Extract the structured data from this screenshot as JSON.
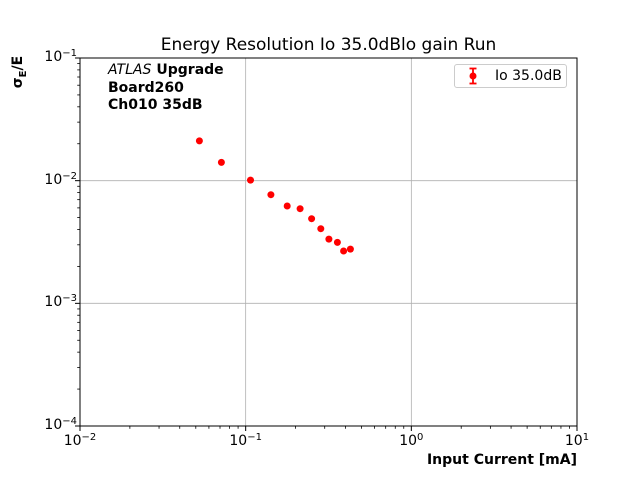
{
  "figure": {
    "background": "#ffffff"
  },
  "annotation": {
    "line1_italic": "ATLAS",
    "line1_bold": "Upgrade",
    "line2": "Board260",
    "line3": "Ch010 35dB"
  },
  "legend": {
    "label": "Io 35.0dB"
  },
  "ylabel_parts": {
    "sym": "σ",
    "sub": "E",
    "rest": "/E"
  },
  "chart_data": {
    "type": "scatter",
    "title": "Energy Resolution Io 35.0dBlo gain Run",
    "xlabel": "Input Current [mA]",
    "ylabel": "sigma_E/E",
    "xscale": "log",
    "yscale": "log",
    "xlim": [
      0.01,
      10
    ],
    "ylim": [
      0.0001,
      0.1
    ],
    "x_tick_exponents": [
      -2,
      -1,
      0,
      1
    ],
    "y_tick_exponents": [
      -1,
      -2,
      -3,
      -4
    ],
    "grid": true,
    "legend_position": "upper right",
    "series": [
      {
        "name": "Io 35.0dB",
        "marker": "o",
        "color": "#ff0000",
        "x": [
          0.0526,
          0.0714,
          0.107,
          0.142,
          0.178,
          0.213,
          0.25,
          0.284,
          0.318,
          0.358,
          0.39,
          0.429
        ],
        "y": [
          0.0211,
          0.0141,
          0.0101,
          0.00768,
          0.00621,
          0.00591,
          0.0049,
          0.00406,
          0.00334,
          0.00314,
          0.00267,
          0.00277
        ]
      }
    ],
    "colors": {
      "grid": "#b0b0b0",
      "frame": "#000000",
      "marker": "#ff0000",
      "background": "#ffffff"
    }
  }
}
